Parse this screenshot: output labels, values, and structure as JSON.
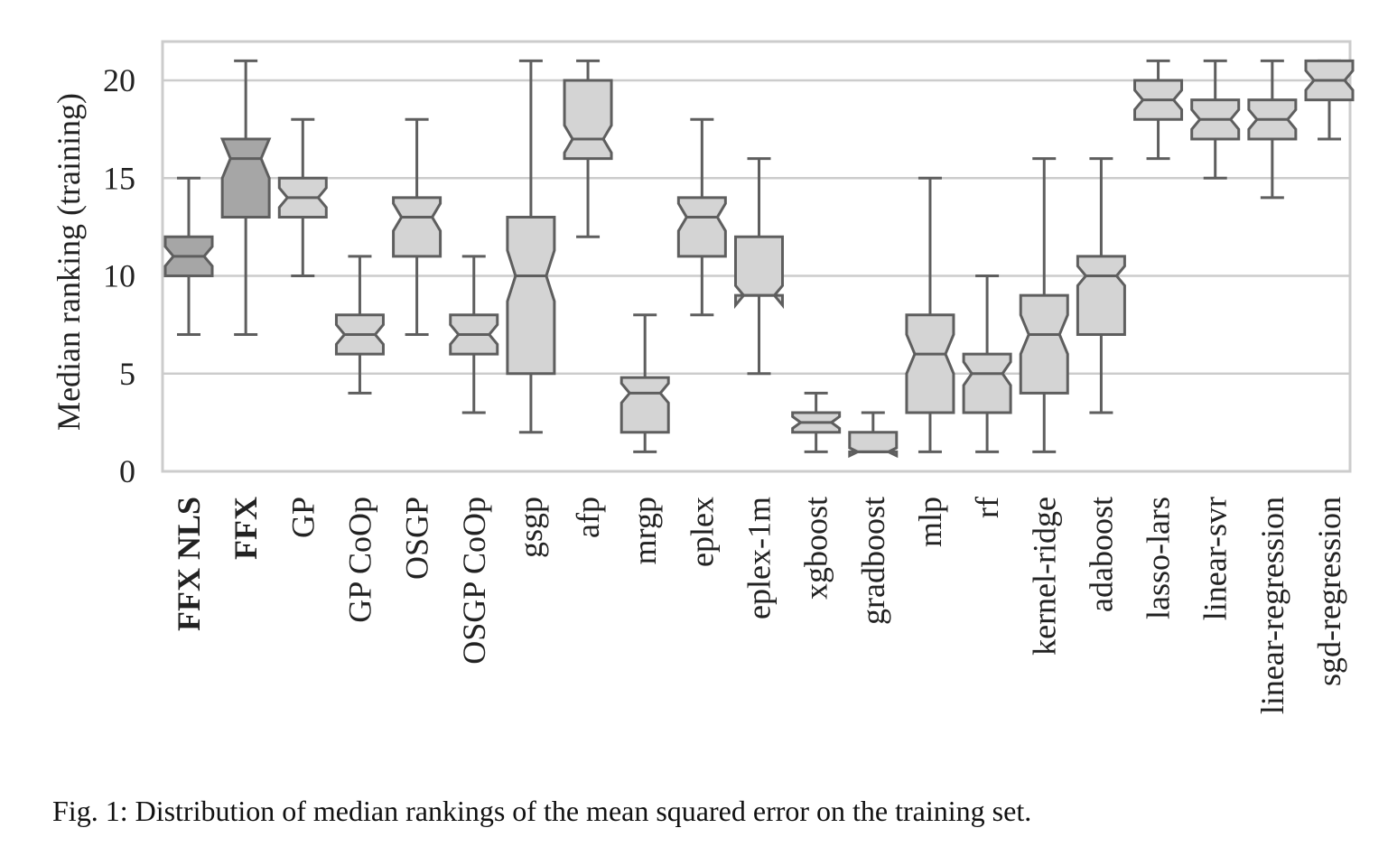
{
  "caption": "Fig. 1: Distribution of median rankings of the mean squared error on the training set.",
  "chart_data": {
    "type": "boxplot",
    "title": "",
    "ylabel": "Median ranking (training)",
    "xlabel": "",
    "ylim": [
      0,
      22
    ],
    "yticks": [
      0,
      5,
      10,
      15,
      20
    ],
    "grid": "horizontal",
    "colors": {
      "highlight": "#a6a6a6",
      "normal": "#d4d4d4",
      "edge": "#5e5e5e",
      "grid": "#cccccc"
    },
    "categories": [
      "FFX NLS",
      "FFX",
      "GP",
      "GP CoOp",
      "OSGP",
      "OSGP CoOp",
      "gsgp",
      "afp",
      "mrgp",
      "eplex",
      "eplex-1m",
      "xgboost",
      "gradboost",
      "mlp",
      "rf",
      "kernel-ridge",
      "adaboost",
      "lasso-lars",
      "linear-svr",
      "linear-regression",
      "sgd-regression"
    ],
    "bold_categories": [
      "FFX NLS",
      "FFX"
    ],
    "boxes": [
      {
        "name": "FFX NLS",
        "whislo": 7,
        "q1": 10,
        "med": 11,
        "q3": 12,
        "whishi": 15,
        "notch": [
          10.5,
          11.5
        ],
        "highlight": true
      },
      {
        "name": "FFX",
        "whislo": 7,
        "q1": 13,
        "med": 16,
        "q3": 17,
        "whishi": 21,
        "notch": [
          15,
          17
        ],
        "highlight": true
      },
      {
        "name": "GP",
        "whislo": 10,
        "q1": 13,
        "med": 14,
        "q3": 15,
        "whishi": 18,
        "notch": [
          13.5,
          14.5
        ],
        "highlight": false
      },
      {
        "name": "GP CoOp",
        "whislo": 4,
        "q1": 6,
        "med": 7,
        "q3": 8,
        "whishi": 11,
        "notch": [
          6.5,
          7.5
        ],
        "highlight": false
      },
      {
        "name": "OSGP",
        "whislo": 7,
        "q1": 11,
        "med": 13,
        "q3": 14,
        "whishi": 18,
        "notch": [
          12.3,
          13.7
        ],
        "highlight": false
      },
      {
        "name": "OSGP CoOp",
        "whislo": 3,
        "q1": 6,
        "med": 7,
        "q3": 8,
        "whishi": 11,
        "notch": [
          6.5,
          7.5
        ],
        "highlight": false
      },
      {
        "name": "gsgp",
        "whislo": 2,
        "q1": 5,
        "med": 10,
        "q3": 13,
        "whishi": 21,
        "notch": [
          8.7,
          11.3
        ],
        "highlight": false
      },
      {
        "name": "afp",
        "whislo": 12,
        "q1": 16,
        "med": 17,
        "q3": 20,
        "whishi": 21,
        "notch": [
          16.3,
          17.7
        ],
        "highlight": false
      },
      {
        "name": "mrgp",
        "whislo": 1,
        "q1": 2,
        "med": 4,
        "q3": 4.8,
        "whishi": 8,
        "notch": [
          3.5,
          4.5
        ],
        "highlight": false
      },
      {
        "name": "eplex",
        "whislo": 8,
        "q1": 11,
        "med": 13,
        "q3": 14,
        "whishi": 18,
        "notch": [
          12.3,
          13.7
        ],
        "highlight": false
      },
      {
        "name": "eplex-1m",
        "whislo": 5,
        "q1": 9,
        "med": 9,
        "q3": 12,
        "whishi": 16,
        "notch": [
          8.5,
          9.5
        ],
        "highlight": false
      },
      {
        "name": "xgboost",
        "whislo": 1,
        "q1": 2,
        "med": 2.5,
        "q3": 3,
        "whishi": 4,
        "notch": [
          2.2,
          2.8
        ],
        "highlight": false
      },
      {
        "name": "gradboost",
        "whislo": 1,
        "q1": 1,
        "med": 1,
        "q3": 2,
        "whishi": 3,
        "notch": [
          0.8,
          1.2
        ],
        "highlight": false
      },
      {
        "name": "mlp",
        "whislo": 1,
        "q1": 3,
        "med": 6,
        "q3": 8,
        "whishi": 15,
        "notch": [
          5,
          7
        ],
        "highlight": false
      },
      {
        "name": "rf",
        "whislo": 1,
        "q1": 3,
        "med": 5,
        "q3": 6,
        "whishi": 10,
        "notch": [
          4.4,
          5.6
        ],
        "highlight": false
      },
      {
        "name": "kernel-ridge",
        "whislo": 1,
        "q1": 4,
        "med": 7,
        "q3": 9,
        "whishi": 16,
        "notch": [
          6,
          8
        ],
        "highlight": false
      },
      {
        "name": "adaboost",
        "whislo": 3,
        "q1": 7,
        "med": 10,
        "q3": 11,
        "whishi": 16,
        "notch": [
          9.5,
          10.5
        ],
        "highlight": false
      },
      {
        "name": "lasso-lars",
        "whislo": 16,
        "q1": 18,
        "med": 19,
        "q3": 20,
        "whishi": 21,
        "notch": [
          18.5,
          19.5
        ],
        "highlight": false
      },
      {
        "name": "linear-svr",
        "whislo": 15,
        "q1": 17,
        "med": 18,
        "q3": 19,
        "whishi": 21,
        "notch": [
          17.5,
          18.5
        ],
        "highlight": false
      },
      {
        "name": "linear-regression",
        "whislo": 14,
        "q1": 17,
        "med": 18,
        "q3": 19,
        "whishi": 21,
        "notch": [
          17.5,
          18.5
        ],
        "highlight": false
      },
      {
        "name": "sgd-regression",
        "whislo": 17,
        "q1": 19,
        "med": 20,
        "q3": 21,
        "whishi": 21,
        "notch": [
          19.5,
          20.5
        ],
        "highlight": false
      }
    ]
  }
}
